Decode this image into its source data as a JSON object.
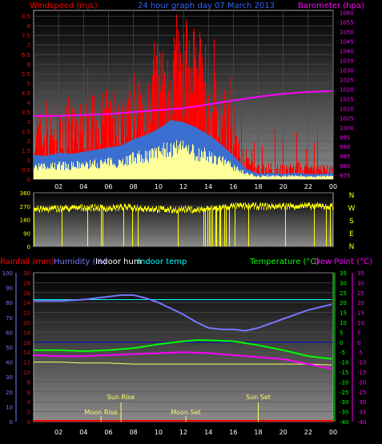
{
  "top": {
    "title_wind": "Windspeed (m/s)",
    "title_center": "24 hour graph day  07 March 2013",
    "title_baro": "Barometer (hpa)"
  },
  "bottom": {
    "label_rain": "Rainfall (mm)",
    "label_hum": "Humidity (%)",
    "label_inhum": "Indoor hum",
    "label_intemp": "Indoor temp",
    "label_temp": "Temperature (°C)",
    "label_dew": "Dew Point (°C)",
    "sun_rise": "Sun Rise",
    "sun_set": "Sun Set",
    "moon_rise": "Moon Rise",
    "moon_set": "Moon Set"
  },
  "compass": [
    "N",
    "W",
    "S",
    "E",
    "N"
  ],
  "colors": {
    "background": "#000000",
    "plot_bg_top": "#000000",
    "plot_bg_bottom": "#8a8a8a",
    "wind": "#ff0000",
    "wind_avg": "#3a6fd0",
    "gust_low": "#ffff99",
    "barometer": "#ff00ff",
    "direction": "#ffff00",
    "humidity": "#7777ff",
    "indoor_hum": "#ffffff",
    "indoor_temp": "#00ffff",
    "temperature": "#00ff00",
    "dew_point": "#ff00ff",
    "rainfall": "#ff0000",
    "sun_moon": "#ffff66"
  },
  "chart_data": [
    {
      "type": "bar",
      "name": "wind_barometer",
      "x_ticks": [
        "02",
        "04",
        "06",
        "08",
        "10",
        "12",
        "14",
        "16",
        "18",
        "20",
        "22",
        "00"
      ],
      "y_left_ticks": [
        "0",
        "0.5",
        "1",
        "1.5",
        "2",
        "2.5",
        "3",
        "3.5",
        "4",
        "4.5",
        "5",
        "5.5",
        "6",
        "6.5",
        "7",
        "7.5",
        "8",
        "8.5"
      ],
      "y_left_lim": [
        0,
        8.8
      ],
      "y_right_ticks": [
        "975",
        "980",
        "985",
        "990",
        "995",
        "1000",
        "1005",
        "1010",
        "1015",
        "1020",
        "1025",
        "1030",
        "1035",
        "1040",
        "1045",
        "1050",
        "1055",
        "1060"
      ],
      "y_right_lim": [
        973,
        1061
      ],
      "series": [
        {
          "name": "Windspeed (m/s)",
          "hours": [
            0,
            1,
            2,
            3,
            4,
            5,
            6,
            7,
            8,
            9,
            10,
            11,
            12,
            13,
            14,
            15,
            16,
            17,
            18,
            19,
            20,
            21,
            22,
            23,
            24
          ],
          "values": [
            2.3,
            2.2,
            2.5,
            2.4,
            2.6,
            2.8,
            3.0,
            3.2,
            3.8,
            4.2,
            4.8,
            5.6,
            5.4,
            4.9,
            4.2,
            3.3,
            2.2,
            1.0,
            0.5,
            0.6,
            0.5,
            0.6,
            0.5,
            0.5,
            0.6
          ]
        },
        {
          "name": "Barometer (hpa)",
          "hours": [
            0,
            2,
            4,
            6,
            8,
            10,
            12,
            14,
            16,
            18,
            20,
            22,
            24
          ],
          "values": [
            1006,
            1006,
            1006.5,
            1007,
            1008,
            1009,
            1010,
            1012,
            1014,
            1016,
            1017.5,
            1018.5,
            1019
          ]
        }
      ]
    },
    {
      "type": "scatter",
      "name": "wind_direction",
      "y_ticks": [
        "360",
        "270",
        "180",
        "90",
        "0"
      ],
      "y_lim": [
        0,
        360
      ],
      "series": [
        {
          "name": "Direction",
          "hours": [
            0,
            1,
            2,
            3,
            4,
            5,
            6,
            7,
            8,
            9,
            10,
            11,
            12,
            13,
            14,
            15,
            16,
            17,
            18,
            19,
            20,
            21,
            22,
            23,
            24
          ],
          "values": [
            250,
            250,
            255,
            255,
            260,
            260,
            255,
            262,
            260,
            255,
            250,
            245,
            250,
            245,
            250,
            260,
            270,
            270,
            270,
            268,
            270,
            272,
            270,
            270,
            265
          ]
        }
      ]
    },
    {
      "type": "line",
      "name": "temp_humidity",
      "y_hum_ticks": [
        "100",
        "90",
        "80",
        "70",
        "60",
        "50",
        "40",
        "30",
        "20",
        "10",
        "0"
      ],
      "y_rain_ticks": [
        "30",
        "28",
        "26",
        "24",
        "22",
        "20",
        "18",
        "16",
        "14",
        "12",
        "10",
        "8",
        "6",
        "4",
        "2",
        "0"
      ],
      "y_temp_ticks": [
        "35",
        "30",
        "25",
        "20",
        "15",
        "10",
        "5",
        "0",
        "-5",
        "-10",
        "-15",
        "-20",
        "-25",
        "-30",
        "-35",
        "-40"
      ],
      "y_temp_lim": [
        -40,
        35
      ],
      "series": [
        {
          "name": "Humidity (%)",
          "hours": [
            0,
            2,
            4,
            6,
            7,
            8,
            9,
            10,
            11,
            12,
            13,
            14,
            15,
            16,
            17,
            18,
            19,
            20,
            21,
            22,
            23,
            24
          ],
          "values": [
            81,
            81,
            82,
            84,
            85,
            85,
            83,
            80,
            76,
            72,
            67,
            63,
            62,
            62,
            61,
            63,
            66,
            69,
            72,
            75,
            77,
            79
          ]
        },
        {
          "name": "Indoor temp",
          "hours": [
            0,
            24
          ],
          "values": [
            82,
            82
          ]
        },
        {
          "name": "Temperature (°C)",
          "hours": [
            0,
            2,
            4,
            6,
            8,
            10,
            12,
            13,
            14,
            16,
            18,
            20,
            22,
            24
          ],
          "values": [
            -4,
            -4,
            -4.5,
            -4,
            -3,
            -1,
            0.5,
            1,
            1,
            0.5,
            -1.5,
            -4,
            -7,
            -8.5
          ]
        },
        {
          "name": "Dew Point (°C)",
          "hours": [
            0,
            2,
            4,
            6,
            8,
            10,
            12,
            14,
            16,
            18,
            20,
            22,
            24
          ],
          "values": [
            -6.5,
            -7,
            -7,
            -6.5,
            -6,
            -5.5,
            -5,
            -5.5,
            -6.5,
            -7.5,
            -8.5,
            -11,
            -13.5
          ]
        },
        {
          "name": "Indoor hum",
          "hours": [
            0,
            2,
            4,
            6,
            8,
            10,
            12,
            14,
            16,
            18,
            20,
            22,
            24
          ],
          "values": [
            -10,
            -10,
            -10.5,
            -10.5,
            -11,
            -11,
            -11,
            -11,
            -11,
            -11,
            -11,
            -11,
            -11.5
          ]
        },
        {
          "name": "Rainfall (mm)",
          "hours": [
            0,
            24
          ],
          "values": [
            0,
            0
          ]
        }
      ],
      "markers": {
        "sun_rise_hour": 7.0,
        "sun_set_hour": 18.0,
        "moon_rise_hour": 5.4,
        "moon_set_hour": 12.2
      }
    }
  ]
}
